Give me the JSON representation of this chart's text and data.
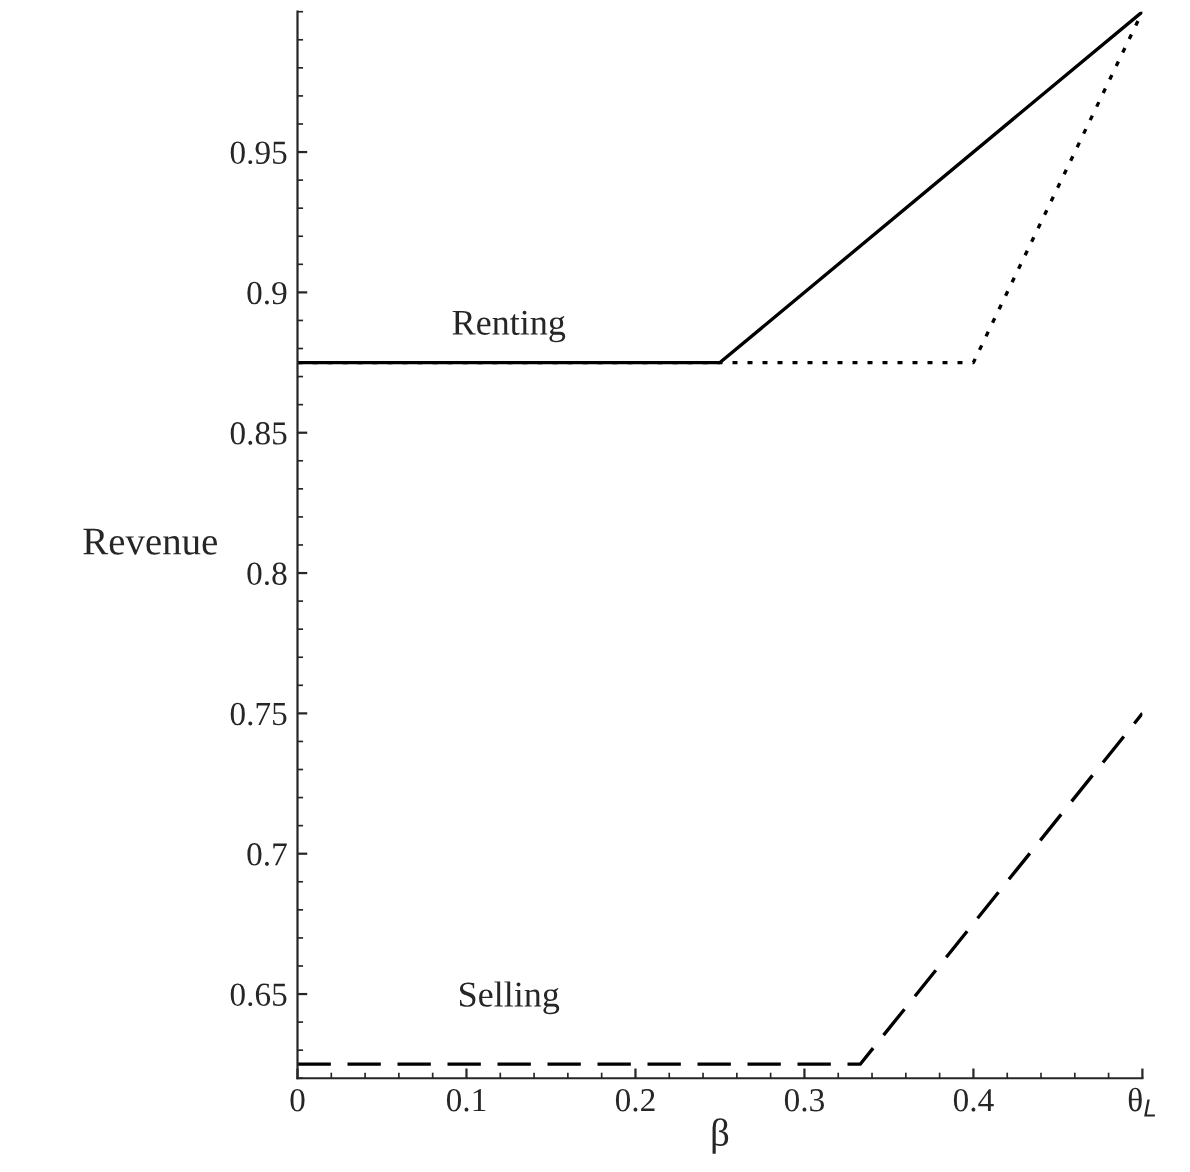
{
  "chart_data": {
    "type": "line",
    "xlabel": "β",
    "ylabel": "Revenue",
    "xlim": [
      0,
      0.5
    ],
    "ylim": [
      0.62,
      1.0
    ],
    "xticks": [
      0,
      0.1,
      0.2,
      0.3,
      0.4,
      {
        "value": 0.5,
        "label": "θ$_{L}$"
      }
    ],
    "yticks": [
      0.65,
      0.7,
      0.75,
      0.8,
      0.85,
      0.9,
      0.95
    ],
    "series": [
      {
        "color": "#000000",
        "line_style": "solid",
        "x": [
          0,
          0.25,
          0.5
        ],
        "values": [
          0.875,
          0.875,
          1.0
        ]
      },
      {
        "color": "#000000",
        "line_style": "dotted",
        "x": [
          0,
          0.4,
          0.5
        ],
        "values": [
          0.875,
          0.875,
          1.0
        ]
      },
      {
        "color": "#000000",
        "line_style": "dashed",
        "x": [
          0,
          0.333,
          0.5
        ],
        "values": [
          0.625,
          0.625,
          0.75
        ]
      }
    ],
    "annotations": [
      "Renting",
      "Selling"
    ],
    "grid": false,
    "legend": false
  }
}
